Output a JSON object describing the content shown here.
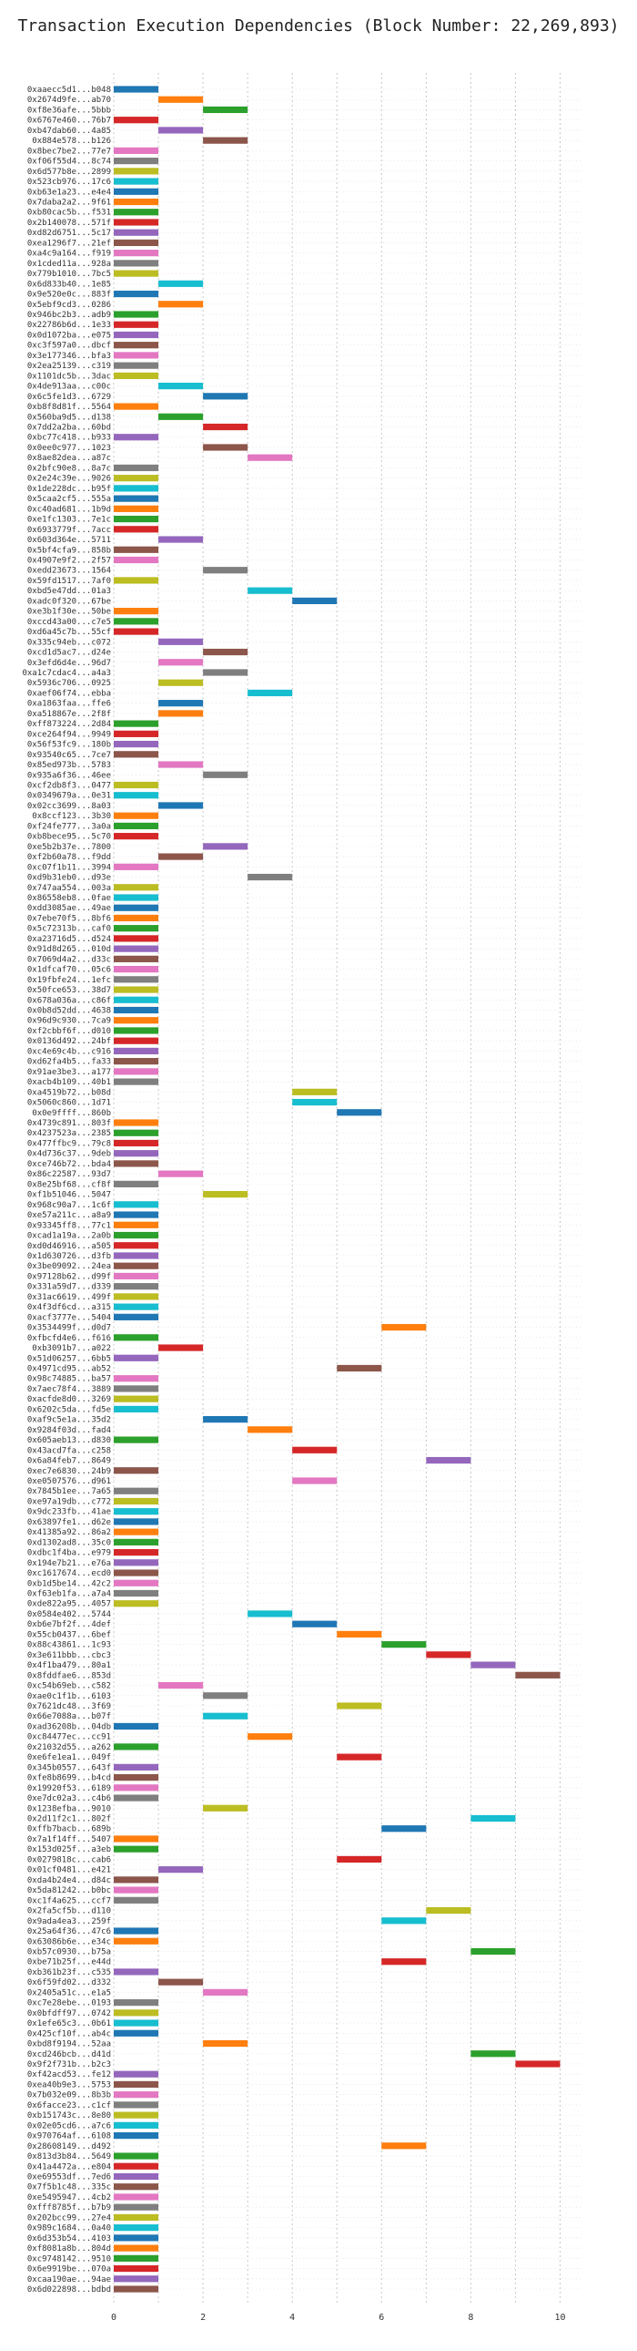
{
  "chart_data": {
    "type": "bar",
    "orientation": "horizontal-gantt",
    "title": "Transaction Execution Dependencies (Block Number: 22,269,893)",
    "xlabel": "",
    "ylabel": "",
    "xlim": [
      0,
      10.5
    ],
    "xticks": [
      "0",
      "2",
      "4",
      "6",
      "8",
      "10"
    ],
    "grid": true,
    "palette": [
      "#1f77b4",
      "#ff7f0e",
      "#2ca02c",
      "#d62728",
      "#9467bd",
      "#8c564b",
      "#e377c2",
      "#7f7f7f",
      "#bcbd22",
      "#17becf"
    ],
    "transactions": [
      {
        "label": "0xaaecc5d1...b048",
        "start": 0
      },
      {
        "label": "0x2674d9fe...ab70",
        "start": 1
      },
      {
        "label": "0xf8e36afe...5bbb",
        "start": 2
      },
      {
        "label": "0x6767e460...76b7",
        "start": 0
      },
      {
        "label": "0xb47dab60...4a85",
        "start": 1
      },
      {
        "label": "0x884e578...b126",
        "start": 2
      },
      {
        "label": "0x8bec7be2...77e7",
        "start": 0
      },
      {
        "label": "0xf06f55d4...8c74",
        "start": 0
      },
      {
        "label": "0x6d577b8e...2899",
        "start": 0
      },
      {
        "label": "0x523cb976...17c6",
        "start": 0
      },
      {
        "label": "0xb63e1a23...e4e4",
        "start": 0
      },
      {
        "label": "0x7daba2a2...9f61",
        "start": 0
      },
      {
        "label": "0xb80cac5b...f531",
        "start": 0
      },
      {
        "label": "0x2b140078...571f",
        "start": 0
      },
      {
        "label": "0xd82d6751...5c17",
        "start": 0
      },
      {
        "label": "0xea1296f7...21ef",
        "start": 0
      },
      {
        "label": "0xa4c9a164...f919",
        "start": 0
      },
      {
        "label": "0x1cded11a...928a",
        "start": 0
      },
      {
        "label": "0x779b1010...7bc5",
        "start": 0
      },
      {
        "label": "0x6d833b40...1e85",
        "start": 1
      },
      {
        "label": "0x9e520e0c...883f",
        "start": 0
      },
      {
        "label": "0x5ebf9cd3...0286",
        "start": 1
      },
      {
        "label": "0x946bc2b3...adb9",
        "start": 0
      },
      {
        "label": "0x22786b6d...1e33",
        "start": 0
      },
      {
        "label": "0x0d1072ba...e075",
        "start": 0
      },
      {
        "label": "0xc3f597a0...dbcf",
        "start": 0
      },
      {
        "label": "0x3e177346...bfa3",
        "start": 0
      },
      {
        "label": "0x2ea25139...c319",
        "start": 0
      },
      {
        "label": "0x1101dc5b...3dac",
        "start": 0
      },
      {
        "label": "0x4de913aa...c00c",
        "start": 1
      },
      {
        "label": "0x6c5fe1d3...6729",
        "start": 2
      },
      {
        "label": "0xb8f8d81f...5564",
        "start": 0
      },
      {
        "label": "0x560ba9d5...d138",
        "start": 1
      },
      {
        "label": "0x7dd2a2ba...60bd",
        "start": 2
      },
      {
        "label": "0xbc77c418...b933",
        "start": 0
      },
      {
        "label": "0x0ee0c977...1023",
        "start": 2
      },
      {
        "label": "0x8ae82dea...a87c",
        "start": 3
      },
      {
        "label": "0x2bfc90e8...8a7c",
        "start": 0
      },
      {
        "label": "0x2e24c39e...9026",
        "start": 0
      },
      {
        "label": "0x1de228dc...b95f",
        "start": 0
      },
      {
        "label": "0x5caa2cf5...555a",
        "start": 0
      },
      {
        "label": "0xc40ad681...1b9d",
        "start": 0
      },
      {
        "label": "0xe1fc1303...7e1c",
        "start": 0
      },
      {
        "label": "0x6933779f...7acc",
        "start": 0
      },
      {
        "label": "0x603d364e...5711",
        "start": 1
      },
      {
        "label": "0x5bf4cfa9...858b",
        "start": 0
      },
      {
        "label": "0x4907e9f2...2f57",
        "start": 0
      },
      {
        "label": "0xedd23673...1564",
        "start": 2
      },
      {
        "label": "0x59fd1517...7af0",
        "start": 0
      },
      {
        "label": "0xbd5e47dd...01a3",
        "start": 3
      },
      {
        "label": "0xadc0f320...67be",
        "start": 4
      },
      {
        "label": "0xe3b1f30e...50be",
        "start": 0
      },
      {
        "label": "0xccd43a00...c7e5",
        "start": 0
      },
      {
        "label": "0xd6a45c7b...55cf",
        "start": 0
      },
      {
        "label": "0x335c94eb...c072",
        "start": 1
      },
      {
        "label": "0xcd1d5ac7...d24e",
        "start": 2
      },
      {
        "label": "0x3efd6d4e...96d7",
        "start": 1
      },
      {
        "label": "0xa1c7cdac4...a4a3",
        "start": 2
      },
      {
        "label": "0x5936c706...0925",
        "start": 1
      },
      {
        "label": "0xaef06f74...ebba",
        "start": 3
      },
      {
        "label": "0xa1863faa...ffe6",
        "start": 1
      },
      {
        "label": "0xa518867e...2f8f",
        "start": 1
      },
      {
        "label": "0xff873224...2d84",
        "start": 0
      },
      {
        "label": "0xce264f94...9949",
        "start": 0
      },
      {
        "label": "0x56f53fc9...180b",
        "start": 0
      },
      {
        "label": "0x93540c65...7ce7",
        "start": 0
      },
      {
        "label": "0x85ed973b...5783",
        "start": 1
      },
      {
        "label": "0x935a6f36...46ee",
        "start": 2
      },
      {
        "label": "0xcf2db8f3...0477",
        "start": 0
      },
      {
        "label": "0x0349679a...0e31",
        "start": 0
      },
      {
        "label": "0x02cc3699...8a03",
        "start": 1
      },
      {
        "label": "0x8ccf123...3b30",
        "start": 0
      },
      {
        "label": "0xf24fe777...3a0a",
        "start": 0
      },
      {
        "label": "0xb8bece95...5c70",
        "start": 0
      },
      {
        "label": "0xe5b2b37e...7800",
        "start": 2
      },
      {
        "label": "0xf2b60a78...f9dd",
        "start": 1
      },
      {
        "label": "0xc07f1b11...3994",
        "start": 0
      },
      {
        "label": "0xd9b31eb0...d93e",
        "start": 3
      },
      {
        "label": "0x747aa554...003a",
        "start": 0
      },
      {
        "label": "0x86558eb8...0fae",
        "start": 0
      },
      {
        "label": "0xdd3085ae...49ae",
        "start": 0
      },
      {
        "label": "0x7ebe70f5...8bf6",
        "start": 0
      },
      {
        "label": "0x5c72313b...caf0",
        "start": 0
      },
      {
        "label": "0xa23716d5...d524",
        "start": 0
      },
      {
        "label": "0x91d8d265...010d",
        "start": 0
      },
      {
        "label": "0x7069d4a2...d33c",
        "start": 0
      },
      {
        "label": "0x1dfcaf70...05c6",
        "start": 0
      },
      {
        "label": "0x19fbfe24...1efc",
        "start": 0
      },
      {
        "label": "0x50fce653...38d7",
        "start": 0
      },
      {
        "label": "0x678a036a...c86f",
        "start": 0
      },
      {
        "label": "0x0b8d52dd...4638",
        "start": 0
      },
      {
        "label": "0x96d9c930...7ca9",
        "start": 0
      },
      {
        "label": "0xf2cbbf6f...d010",
        "start": 0
      },
      {
        "label": "0x0136d492...24bf",
        "start": 0
      },
      {
        "label": "0xc4e69c4b...c916",
        "start": 0
      },
      {
        "label": "0xd62fa4b5...fa33",
        "start": 0
      },
      {
        "label": "0x91ae3be3...a177",
        "start": 0
      },
      {
        "label": "0xacb4b109...40b1",
        "start": 0
      },
      {
        "label": "0xa4519b72...b08d",
        "start": 4
      },
      {
        "label": "0x5060c860...1d71",
        "start": 4
      },
      {
        "label": "0x0e9ffff...860b",
        "start": 5
      },
      {
        "label": "0x4739c891...803f",
        "start": 0
      },
      {
        "label": "0x4237523a...2385",
        "start": 0
      },
      {
        "label": "0x477ffbc9...79c8",
        "start": 0
      },
      {
        "label": "0x4d736c37...9deb",
        "start": 0
      },
      {
        "label": "0xce746b72...bda4",
        "start": 0
      },
      {
        "label": "0x86c22587...93d7",
        "start": 1
      },
      {
        "label": "0x8e25bf68...cf8f",
        "start": 0
      },
      {
        "label": "0xf1b51046...5047",
        "start": 2
      },
      {
        "label": "0x968c90a7...1c6f",
        "start": 0
      },
      {
        "label": "0xe57a211c...a8a9",
        "start": 0
      },
      {
        "label": "0x93345ff8...77c1",
        "start": 0
      },
      {
        "label": "0xcad1a19a...2a0b",
        "start": 0
      },
      {
        "label": "0xd0d46916...a505",
        "start": 0
      },
      {
        "label": "0x1d630726...d3fb",
        "start": 0
      },
      {
        "label": "0x3be09092...24ea",
        "start": 0
      },
      {
        "label": "0x97128b62...d99f",
        "start": 0
      },
      {
        "label": "0x331a59d7...d339",
        "start": 0
      },
      {
        "label": "0x31ac6619...499f",
        "start": 0
      },
      {
        "label": "0x4f3df6cd...a315",
        "start": 0
      },
      {
        "label": "0xacf3777e...5404",
        "start": 0
      },
      {
        "label": "0x3534499f...d0d7",
        "start": 6
      },
      {
        "label": "0xfbcfd4e6...f616",
        "start": 0
      },
      {
        "label": "0xb3091b7...a022",
        "start": 1
      },
      {
        "label": "0x51d06257...6bb5",
        "start": 0
      },
      {
        "label": "0x4971cd95...ab52",
        "start": 5
      },
      {
        "label": "0x98c74885...ba57",
        "start": 0
      },
      {
        "label": "0x7aec78f4...3889",
        "start": 0
      },
      {
        "label": "0xacfde8d0...3269",
        "start": 0
      },
      {
        "label": "0x6202c5da...fd5e",
        "start": 0
      },
      {
        "label": "0xaf9c5e1a...35d2",
        "start": 2
      },
      {
        "label": "0x9284f03d...fad4",
        "start": 3
      },
      {
        "label": "0x605aeb13...d830",
        "start": 0
      },
      {
        "label": "0x43acd7fa...c258",
        "start": 4
      },
      {
        "label": "0x6a84feb7...8649",
        "start": 7
      },
      {
        "label": "0xec7e6830...24b9",
        "start": 0
      },
      {
        "label": "0xe0507576...d961",
        "start": 4
      },
      {
        "label": "0x7845b1ee...7a65",
        "start": 0
      },
      {
        "label": "0xe97a19db...c772",
        "start": 0
      },
      {
        "label": "0x9dc233fb...41ae",
        "start": 0
      },
      {
        "label": "0x63897fe1...d62e",
        "start": 0
      },
      {
        "label": "0x41385a92...86a2",
        "start": 0
      },
      {
        "label": "0xd1302ad8...35c0",
        "start": 0
      },
      {
        "label": "0xdbc1f4ba...e979",
        "start": 0
      },
      {
        "label": "0x194e7b21...e76a",
        "start": 0
      },
      {
        "label": "0xc1617674...ecd0",
        "start": 0
      },
      {
        "label": "0xb1d5be14...42c2",
        "start": 0
      },
      {
        "label": "0xf63eb1fa...a7a4",
        "start": 0
      },
      {
        "label": "0xde822a95...4057",
        "start": 0
      },
      {
        "label": "0x0584e402...5744",
        "start": 3
      },
      {
        "label": "0xb6e7bf2f...4def",
        "start": 4
      },
      {
        "label": "0x55cb0437...6bef",
        "start": 5
      },
      {
        "label": "0x88c43861...1c93",
        "start": 6
      },
      {
        "label": "0x3e611bbb...cbc3",
        "start": 7
      },
      {
        "label": "0x4f1ba479...80a1",
        "start": 8
      },
      {
        "label": "0x8fddfae6...853d",
        "start": 9
      },
      {
        "label": "0xc54b69eb...c582",
        "start": 1
      },
      {
        "label": "0xae0c1f1b...6103",
        "start": 2
      },
      {
        "label": "0x7621dc48...3f69",
        "start": 5
      },
      {
        "label": "0x66e7088a...b07f",
        "start": 2
      },
      {
        "label": "0xad36208b...04db",
        "start": 0
      },
      {
        "label": "0xc84477ec...cc91",
        "start": 3
      },
      {
        "label": "0x21032d55...a262",
        "start": 0
      },
      {
        "label": "0xe6fe1ea1...049f",
        "start": 5
      },
      {
        "label": "0x345b0557...643f",
        "start": 0
      },
      {
        "label": "0xfe8b8699...b4cd",
        "start": 0
      },
      {
        "label": "0x19920f53...6189",
        "start": 0
      },
      {
        "label": "0xe7dc02a3...c4b6",
        "start": 0
      },
      {
        "label": "0x1238efba...9010",
        "start": 2
      },
      {
        "label": "0x2d11f2c1...802f",
        "start": 8
      },
      {
        "label": "0xffb7bacb...689b",
        "start": 6
      },
      {
        "label": "0x7a1f14ff...5407",
        "start": 0
      },
      {
        "label": "0x153d025f...a3eb",
        "start": 0
      },
      {
        "label": "0x0279818c...cab6",
        "start": 5
      },
      {
        "label": "0x01cf0481...e421",
        "start": 1
      },
      {
        "label": "0xda4b24e4...d84c",
        "start": 0
      },
      {
        "label": "0x5da81242...b0bc",
        "start": 0
      },
      {
        "label": "0xc1f4a625...ccf7",
        "start": 0
      },
      {
        "label": "0x2fa5cf5b...d110",
        "start": 7
      },
      {
        "label": "0x9ada4ea3...259f",
        "start": 6
      },
      {
        "label": "0x25a64f36...47c6",
        "start": 0
      },
      {
        "label": "0x63086b6e...e34c",
        "start": 0
      },
      {
        "label": "0xb57c0930...b75a",
        "start": 8
      },
      {
        "label": "0xbe71b25f...e44d",
        "start": 6
      },
      {
        "label": "0xb361b23f...c535",
        "start": 0
      },
      {
        "label": "0x6f59fd02...d332",
        "start": 1
      },
      {
        "label": "0x2405a51c...e1a5",
        "start": 2
      },
      {
        "label": "0xc7e28ebe...0193",
        "start": 0
      },
      {
        "label": "0x0bfdff97...0742",
        "start": 0
      },
      {
        "label": "0x1efe65c3...0b61",
        "start": 0
      },
      {
        "label": "0x425cf10f...ab4c",
        "start": 0
      },
      {
        "label": "0xbd8f9194...52aa",
        "start": 2
      },
      {
        "label": "0xcd246bcb...d41d",
        "start": 8
      },
      {
        "label": "0x9f2f731b...b2c3",
        "start": 9
      },
      {
        "label": "0xf42acd53...fe12",
        "start": 0
      },
      {
        "label": "0xea40b9e3...5753",
        "start": 0
      },
      {
        "label": "0x7b032e09...8b3b",
        "start": 0
      },
      {
        "label": "0x6facce23...c1cf",
        "start": 0
      },
      {
        "label": "0xb151743c...8e80",
        "start": 0
      },
      {
        "label": "0x02e05cd6...a7c6",
        "start": 0
      },
      {
        "label": "0x970764af...6108",
        "start": 0
      },
      {
        "label": "0x28608149...d492",
        "start": 6
      },
      {
        "label": "0x813d3b84...5649",
        "start": 0
      },
      {
        "label": "0x41a4472a...e804",
        "start": 0
      },
      {
        "label": "0xe69553df...7ed6",
        "start": 0
      },
      {
        "label": "0x7f5b1c48...335c",
        "start": 0
      },
      {
        "label": "0xe5495947...4cb2",
        "start": 0
      },
      {
        "label": "0xfff8785f...b7b9",
        "start": 0
      },
      {
        "label": "0x202bcc99...27e4",
        "start": 0
      },
      {
        "label": "0x989c1684...0a40",
        "start": 0
      },
      {
        "label": "0x6d353b54...4103",
        "start": 0
      },
      {
        "label": "0xf8081a8b...804d",
        "start": 0
      },
      {
        "label": "0xc9748142...9510",
        "start": 0
      },
      {
        "label": "0x6e9919be...070a",
        "start": 0
      },
      {
        "label": "0xcaa190ae...94ae",
        "start": 0
      },
      {
        "label": "0x6d022898...bdbd",
        "start": 0
      }
    ]
  }
}
